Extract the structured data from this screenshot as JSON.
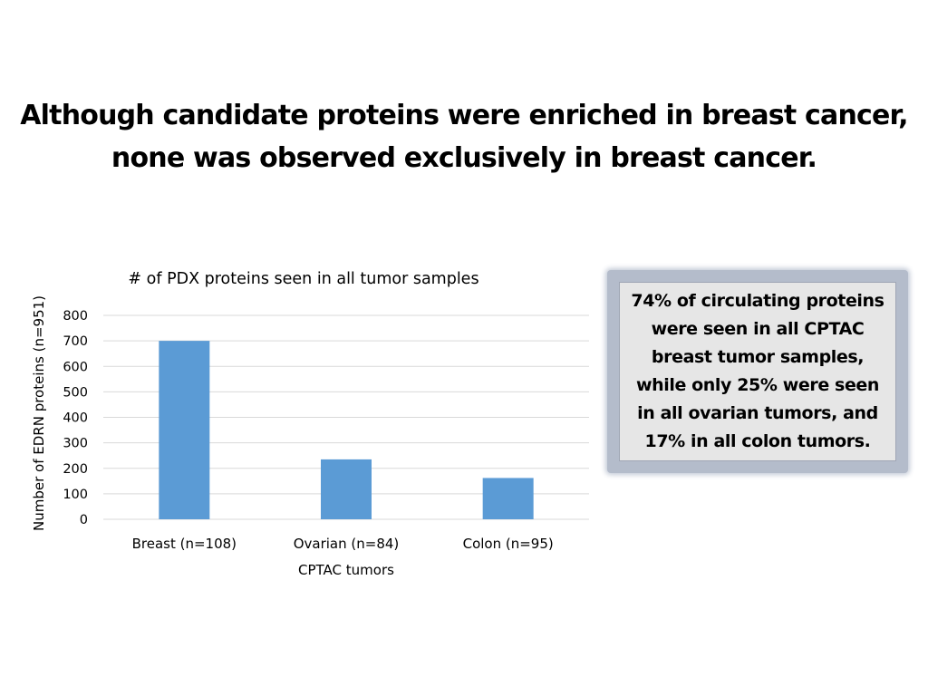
{
  "slide": {
    "title_line1": "Although candidate proteins were enriched in breast cancer,",
    "title_line2": "none was observed exclusively in breast cancer."
  },
  "callout": {
    "text": "74% of circulating proteins were seen in all CPTAC breast tumor samples, while only 25% were seen in all ovarian tumors, and 17% in all colon tumors."
  },
  "chart_data": {
    "type": "bar",
    "title": "# of PDX proteins seen in all tumor samples",
    "xlabel": "CPTAC tumors",
    "ylabel": "Number of EDRN proteins (n=951)",
    "categories": [
      "Breast (n=108)",
      "Ovarian (n=84)",
      "Colon (n=95)"
    ],
    "values": [
      700,
      235,
      162
    ],
    "ylim": [
      0,
      800
    ],
    "yticks": [
      0,
      100,
      200,
      300,
      400,
      500,
      600,
      700,
      800
    ],
    "grid": true,
    "bar_color": "#5b9bd5",
    "grid_color": "#d9d9d9"
  }
}
